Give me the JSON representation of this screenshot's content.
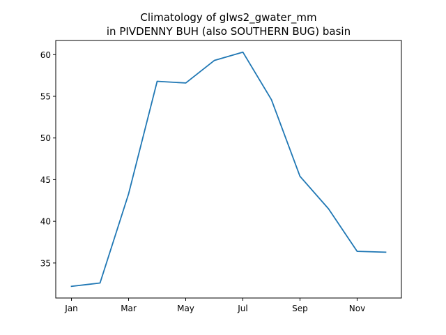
{
  "chart_data": {
    "type": "line",
    "title_line1": "Climatology of glws2_gwater_mm",
    "title_line2": "in PIVDENNY BUH (also SOUTHERN BUG) basin",
    "xlabel": "",
    "ylabel": "",
    "x": [
      1,
      2,
      3,
      4,
      5,
      6,
      7,
      8,
      9,
      10,
      11,
      12
    ],
    "x_tick_values": [
      1,
      3,
      5,
      7,
      9,
      11
    ],
    "x_tick_labels": [
      "Jan",
      "Mar",
      "May",
      "Jul",
      "Sep",
      "Nov"
    ],
    "xlim": [
      0.45,
      12.55
    ],
    "y_ticks": [
      35,
      40,
      45,
      50,
      55,
      60
    ],
    "ylim": [
      30.8,
      61.7
    ],
    "grid": false,
    "series": [
      {
        "color": "#1f77b4",
        "values": [
          32.2,
          32.6,
          43.3,
          56.8,
          56.6,
          59.3,
          60.3,
          54.6,
          45.4,
          41.5,
          36.4,
          36.3
        ]
      }
    ]
  }
}
